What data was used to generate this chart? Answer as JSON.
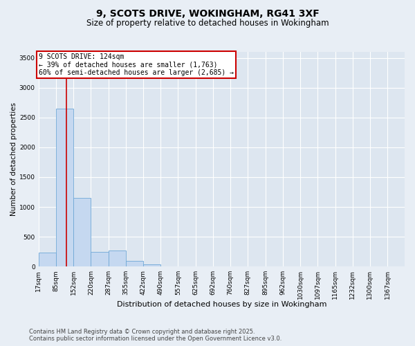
{
  "title_line1": "9, SCOTS DRIVE, WOKINGHAM, RG41 3XF",
  "title_line2": "Size of property relative to detached houses in Wokingham",
  "xlabel": "Distribution of detached houses by size in Wokingham",
  "ylabel": "Number of detached properties",
  "bin_labels": [
    "17sqm",
    "85sqm",
    "152sqm",
    "220sqm",
    "287sqm",
    "355sqm",
    "422sqm",
    "490sqm",
    "557sqm",
    "625sqm",
    "692sqm",
    "760sqm",
    "827sqm",
    "895sqm",
    "962sqm",
    "1030sqm",
    "1097sqm",
    "1165sqm",
    "1232sqm",
    "1300sqm",
    "1367sqm"
  ],
  "bin_edges": [
    17,
    85,
    152,
    220,
    287,
    355,
    422,
    490,
    557,
    625,
    692,
    760,
    827,
    895,
    962,
    1030,
    1097,
    1165,
    1232,
    1300,
    1367
  ],
  "bar_heights": [
    230,
    2650,
    1150,
    250,
    270,
    100,
    40,
    0,
    0,
    0,
    0,
    0,
    0,
    0,
    0,
    0,
    0,
    0,
    0,
    0,
    0
  ],
  "bar_color": "#c5d8f0",
  "bar_edgecolor": "#6fa8d6",
  "vline_x": 124,
  "vline_color": "#cc0000",
  "annotation_title": "9 SCOTS DRIVE: 124sqm",
  "annotation_line1": "← 39% of detached houses are smaller (1,763)",
  "annotation_line2": "60% of semi-detached houses are larger (2,685) →",
  "annotation_box_color": "white",
  "annotation_box_edgecolor": "#cc0000",
  "ylim": [
    0,
    3600
  ],
  "yticks": [
    0,
    500,
    1000,
    1500,
    2000,
    2500,
    3000,
    3500
  ],
  "background_color": "#e8eef5",
  "plot_bg_color": "#dde6f0",
  "grid_color": "white",
  "footnote1": "Contains HM Land Registry data © Crown copyright and database right 2025.",
  "footnote2": "Contains public sector information licensed under the Open Government Licence v3.0.",
  "title_fontsize": 10,
  "subtitle_fontsize": 8.5,
  "xlabel_fontsize": 8,
  "ylabel_fontsize": 7.5,
  "tick_fontsize": 6.5,
  "footnote_fontsize": 6,
  "annotation_fontsize": 7
}
